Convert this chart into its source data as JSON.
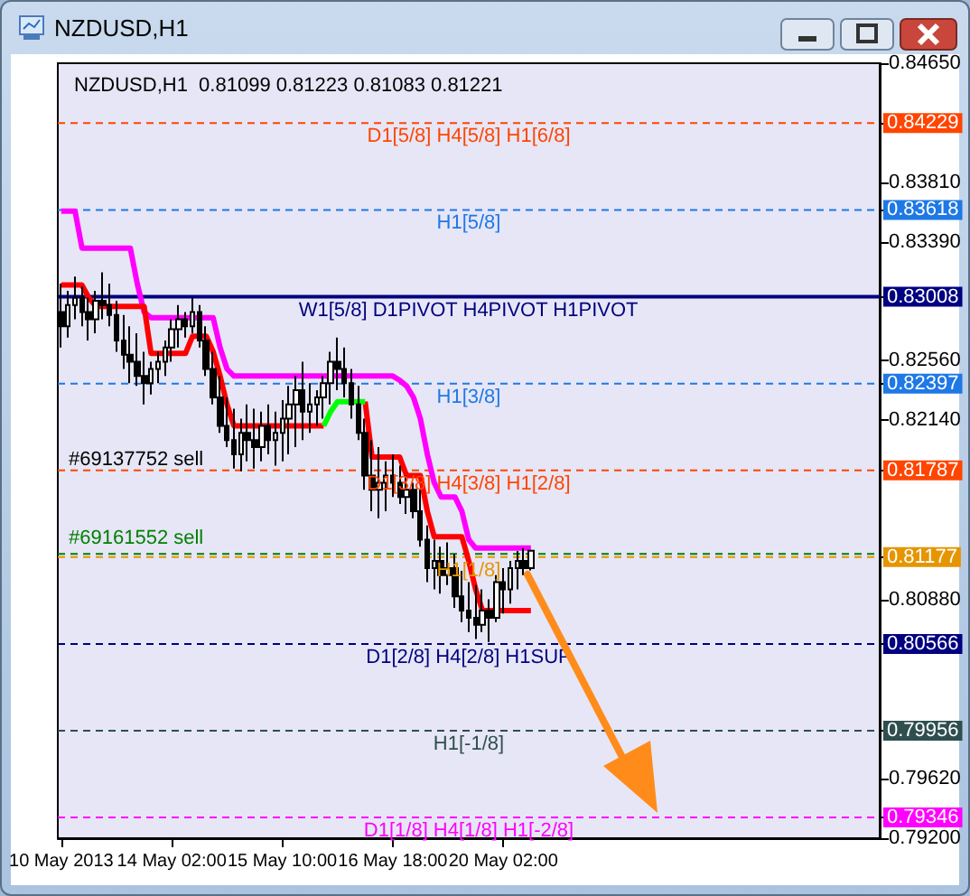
{
  "chart_data": {
    "type": "candlestick",
    "title": "NZDUSD,H1",
    "subtitle": "NZDUSD,H1  0.81099 0.81223 0.81083 0.81221",
    "categories": [
      "10 May 2013",
      null,
      null,
      null,
      null,
      null,
      null,
      null,
      null,
      null,
      null,
      null,
      null,
      null,
      null,
      null,
      "14 May 02:00",
      null,
      null,
      null,
      null,
      null,
      null,
      null,
      null,
      null,
      null,
      null,
      null,
      null,
      null,
      null,
      "15 May 10:00",
      null,
      null,
      null,
      null,
      null,
      null,
      null,
      null,
      null,
      null,
      null,
      null,
      null,
      null,
      null,
      "16 May 18:00",
      null,
      null,
      null,
      null,
      null,
      null,
      null,
      null,
      null,
      null,
      null,
      null,
      null,
      null,
      null,
      "20 May 02:00",
      null,
      null,
      null,
      null,
      null,
      null,
      null,
      null,
      null,
      null,
      null,
      null,
      null,
      null,
      null,
      null,
      null,
      null,
      null,
      null,
      null,
      null,
      null,
      null,
      null,
      null,
      null,
      null,
      null,
      null,
      null,
      null,
      null,
      null,
      null,
      null,
      null,
      null,
      null,
      null,
      null,
      null,
      null,
      null,
      null,
      null,
      null,
      null,
      null,
      null,
      null,
      null,
      null,
      null
    ],
    "series": [
      {
        "type": "candlestick",
        "color": "#000000",
        "ohlc": [
          [
            0.829,
            0.831,
            0.8265,
            0.828
          ],
          [
            0.828,
            0.8305,
            0.8272,
            0.8295
          ],
          [
            0.8295,
            0.8315,
            0.8285,
            0.83
          ],
          [
            0.83,
            0.8308,
            0.828,
            0.829
          ],
          [
            0.829,
            0.83,
            0.827,
            0.8285
          ],
          [
            0.8285,
            0.8305,
            0.8275,
            0.8298
          ],
          [
            0.8298,
            0.8318,
            0.8285,
            0.8295
          ],
          [
            0.8295,
            0.831,
            0.828,
            0.8288
          ],
          [
            0.8288,
            0.8298,
            0.8262,
            0.827
          ],
          [
            0.827,
            0.8288,
            0.825,
            0.826
          ],
          [
            0.826,
            0.828,
            0.824,
            0.8255
          ],
          [
            0.8255,
            0.8275,
            0.8238,
            0.8245
          ],
          [
            0.8245,
            0.8262,
            0.8225,
            0.824
          ],
          [
            0.824,
            0.8255,
            0.8232,
            0.825
          ],
          [
            0.825,
            0.8262,
            0.824,
            0.8255
          ],
          [
            0.8255,
            0.827,
            0.8245,
            0.8265
          ],
          [
            0.8265,
            0.8285,
            0.8255,
            0.8278
          ],
          [
            0.8278,
            0.8295,
            0.8265,
            0.8285
          ],
          [
            0.8285,
            0.829,
            0.8272,
            0.828
          ],
          [
            0.828,
            0.83,
            0.8275,
            0.829
          ],
          [
            0.829,
            0.8295,
            0.8265,
            0.827
          ],
          [
            0.827,
            0.828,
            0.8245,
            0.825
          ],
          [
            0.825,
            0.8262,
            0.8225,
            0.823
          ],
          [
            0.823,
            0.8245,
            0.8205,
            0.821
          ],
          [
            0.821,
            0.823,
            0.8195,
            0.82
          ],
          [
            0.82,
            0.8222,
            0.818,
            0.819
          ],
          [
            0.819,
            0.8215,
            0.8178,
            0.8205
          ],
          [
            0.8205,
            0.8225,
            0.8185,
            0.82
          ],
          [
            0.82,
            0.8222,
            0.818,
            0.8195
          ],
          [
            0.8195,
            0.822,
            0.8185,
            0.821
          ],
          [
            0.821,
            0.8225,
            0.819,
            0.82
          ],
          [
            0.82,
            0.822,
            0.8182,
            0.8205
          ],
          [
            0.8205,
            0.8228,
            0.8185,
            0.8215
          ],
          [
            0.8215,
            0.8238,
            0.819,
            0.8225
          ],
          [
            0.8225,
            0.8245,
            0.8195,
            0.8235
          ],
          [
            0.8235,
            0.8255,
            0.82,
            0.822
          ],
          [
            0.822,
            0.824,
            0.8205,
            0.8225
          ],
          [
            0.8225,
            0.8235,
            0.821,
            0.823
          ],
          [
            0.823,
            0.8245,
            0.8215,
            0.824
          ],
          [
            0.824,
            0.8262,
            0.8225,
            0.8255
          ],
          [
            0.8255,
            0.8272,
            0.8235,
            0.825
          ],
          [
            0.825,
            0.8265,
            0.823,
            0.824
          ],
          [
            0.824,
            0.825,
            0.8215,
            0.8225
          ],
          [
            0.8225,
            0.8238,
            0.82,
            0.8205
          ],
          [
            0.8205,
            0.8215,
            0.8165,
            0.8175
          ],
          [
            0.8175,
            0.82,
            0.815,
            0.8165
          ],
          [
            0.8165,
            0.8195,
            0.8145,
            0.817
          ],
          [
            0.817,
            0.8185,
            0.815,
            0.8175
          ],
          [
            0.8175,
            0.819,
            0.816,
            0.817
          ],
          [
            0.817,
            0.8182,
            0.8155,
            0.816
          ],
          [
            0.816,
            0.8175,
            0.8148,
            0.8165
          ],
          [
            0.8165,
            0.817,
            0.8145,
            0.815
          ],
          [
            0.815,
            0.8165,
            0.8125,
            0.813
          ],
          [
            0.813,
            0.814,
            0.81,
            0.811
          ],
          [
            0.811,
            0.813,
            0.8095,
            0.8115
          ],
          [
            0.8115,
            0.8125,
            0.8092,
            0.8105
          ],
          [
            0.8105,
            0.8128,
            0.8098,
            0.811
          ],
          [
            0.811,
            0.812,
            0.8082,
            0.809
          ],
          [
            0.809,
            0.8108,
            0.8072,
            0.808
          ],
          [
            0.808,
            0.81,
            0.8065,
            0.8075
          ],
          [
            0.8075,
            0.8098,
            0.806,
            0.807
          ],
          [
            0.807,
            0.8095,
            0.8065,
            0.808
          ],
          [
            0.808,
            0.8088,
            0.8058,
            0.8075
          ],
          [
            0.8075,
            0.8105,
            0.8072,
            0.81
          ],
          [
            0.81,
            0.811,
            0.8078,
            0.8095
          ],
          [
            0.8095,
            0.8115,
            0.8085,
            0.811
          ],
          [
            0.811,
            0.8122,
            0.8095,
            0.8115
          ],
          [
            0.8115,
            0.8124,
            0.8105,
            0.811
          ],
          [
            0.81099,
            0.81223,
            0.81083,
            0.81221
          ],
          null,
          null,
          null,
          null,
          null,
          null,
          null,
          null,
          null,
          null,
          null,
          null,
          null,
          null,
          null,
          null,
          null,
          null,
          null,
          null,
          null,
          null,
          null,
          null,
          null,
          null,
          null,
          null,
          null,
          null,
          null,
          null,
          null,
          null,
          null,
          null,
          null,
          null,
          null,
          null,
          null,
          null,
          null,
          null,
          null,
          null,
          null,
          null,
          null,
          null
        ]
      },
      {
        "type": "line",
        "color": "#ff00ff",
        "values": [
          0.8361,
          0.8361,
          0.8361,
          0.8335,
          0.8335,
          0.8335,
          0.8335,
          0.8335,
          0.8335,
          0.8335,
          0.8335,
          0.831,
          0.829,
          0.8286,
          0.8286,
          0.8286,
          0.8286,
          0.8286,
          0.8286,
          0.8286,
          0.8286,
          0.8286,
          0.8286,
          0.8265,
          0.825,
          0.8245,
          0.8245,
          0.8245,
          0.8245,
          0.8245,
          0.8245,
          0.8245,
          0.8245,
          0.8245,
          0.8245,
          0.8245,
          0.8245,
          0.8245,
          0.8245,
          0.8245,
          0.8245,
          0.8245,
          0.8245,
          0.8245,
          0.8245,
          0.8245,
          0.8245,
          0.8245,
          0.8245,
          0.8242,
          0.8238,
          0.823,
          0.8215,
          0.819,
          0.817,
          0.816,
          0.816,
          0.816,
          0.815,
          0.813,
          0.8124,
          0.8124,
          0.8124,
          0.8124,
          0.8124,
          0.8124,
          0.8124,
          0.8124,
          0.8124,
          null,
          null,
          null,
          null,
          null,
          null,
          null,
          null,
          null,
          null,
          null,
          null,
          null,
          null,
          null,
          null,
          null,
          null,
          null,
          null,
          null,
          null,
          null,
          null,
          null,
          null,
          null,
          null,
          null,
          null,
          null,
          null,
          null,
          null,
          null,
          null,
          null,
          null,
          null,
          null,
          null,
          null,
          null,
          null,
          null,
          null,
          null,
          null,
          null,
          null
        ]
      },
      {
        "type": "line",
        "color": "#ff0000",
        "values": [
          0.8309,
          0.8309,
          0.8309,
          0.8309,
          0.83,
          0.8294,
          0.8294,
          0.8294,
          0.8294,
          0.8294,
          0.8294,
          0.8294,
          0.8294,
          0.8261,
          0.8261,
          0.8261,
          0.8261,
          0.8261,
          0.8261,
          0.8273,
          0.8273,
          0.8273,
          0.8262,
          0.8245,
          0.8225,
          0.821,
          0.821,
          0.821,
          0.821,
          0.821,
          0.821,
          0.821,
          0.821,
          0.821,
          0.821,
          0.821,
          0.821,
          0.821,
          0.821,
          null,
          null,
          null,
          null,
          null,
          0.8227,
          0.8188,
          0.8188,
          0.8188,
          0.8188,
          0.8188,
          0.8175,
          0.8175,
          0.8175,
          0.815,
          0.8132,
          0.8132,
          0.8132,
          0.8132,
          0.8132,
          0.8115,
          0.8095,
          0.808,
          0.808,
          0.808,
          0.808,
          0.808,
          0.808,
          0.808,
          0.808,
          null,
          null,
          null,
          null,
          null,
          null,
          null,
          null,
          null,
          null,
          null,
          null,
          null,
          null,
          null,
          null,
          null,
          null,
          null,
          null,
          null,
          null,
          null,
          null,
          null,
          null,
          null,
          null,
          null,
          null,
          null,
          null,
          null,
          null,
          null,
          null,
          null,
          null,
          null,
          null,
          null,
          null,
          null,
          null,
          null,
          null,
          null,
          null,
          null,
          null
        ]
      },
      {
        "type": "line",
        "color": "#00ff00",
        "values": [
          null,
          null,
          null,
          null,
          null,
          null,
          null,
          null,
          null,
          null,
          null,
          null,
          null,
          null,
          null,
          null,
          null,
          null,
          null,
          null,
          null,
          null,
          null,
          null,
          null,
          null,
          null,
          null,
          null,
          null,
          null,
          null,
          null,
          null,
          null,
          null,
          null,
          null,
          0.821,
          0.822,
          0.8227,
          0.8227,
          0.8227,
          0.8227,
          0.8227,
          null,
          null,
          null,
          null,
          null,
          null,
          null,
          null,
          null,
          null,
          null,
          null,
          null,
          null,
          null,
          null,
          null,
          null,
          null,
          null,
          null,
          null,
          null,
          null,
          null,
          null,
          null,
          null,
          null,
          null,
          null,
          null,
          null,
          null,
          null,
          null,
          null,
          null,
          null,
          null,
          null,
          null,
          null,
          null,
          null,
          null,
          null,
          null,
          null,
          null,
          null,
          null,
          null,
          null,
          null,
          null,
          null,
          null,
          null,
          null,
          null,
          null,
          null,
          null,
          null,
          null,
          null,
          null,
          null,
          null,
          null,
          null,
          null,
          null
        ]
      }
    ],
    "ylim": [
      0.792,
      0.8465
    ],
    "yticks": [
      {
        "value": 0.792,
        "label": "0.79200"
      },
      {
        "value": 0.79346,
        "label": "0.79346"
      },
      {
        "value": 0.7962,
        "label": "0.79620"
      },
      {
        "value": 0.79956,
        "label": "0.79956"
      },
      {
        "value": 0.80566,
        "label": "0.80566"
      },
      {
        "value": 0.8088,
        "label": "0.80880"
      },
      {
        "value": 0.81177,
        "label": "0.81177"
      },
      {
        "value": 0.81787,
        "label": "0.81787"
      },
      {
        "value": 0.8214,
        "label": "0.82140"
      },
      {
        "value": 0.82397,
        "label": "0.82397"
      },
      {
        "value": 0.8256,
        "label": "0.82560"
      },
      {
        "value": 0.83008,
        "label": "0.83008"
      },
      {
        "value": 0.8339,
        "label": "0.83390"
      },
      {
        "value": 0.83618,
        "label": "0.83618"
      },
      {
        "value": 0.8381,
        "label": "0.83810"
      },
      {
        "value": 0.84229,
        "label": "0.84229"
      },
      {
        "value": 0.8465,
        "label": "0.84650"
      }
    ],
    "ref_lines": [
      {
        "axis": "y",
        "value": 0.84229,
        "label": "D1[5/8] H4[5/8] H1[6/8]",
        "color": "#ff4500",
        "line_style": "dashed"
      },
      {
        "axis": "y",
        "value": 0.83618,
        "label": "H1[5/8]",
        "color": "#1e78e6",
        "line_style": "dashed"
      },
      {
        "axis": "y",
        "value": 0.83008,
        "label": "W1[5/8] D1PIVOT H4PIVOT H1PIVOT",
        "color": "#000080",
        "line_style": "solid"
      },
      {
        "axis": "y",
        "value": 0.82397,
        "label": "H1[3/8]",
        "color": "#1e78e6",
        "line_style": "dashed"
      },
      {
        "axis": "y",
        "value": 0.81787,
        "label": "D1[3/8] H4[3/8] H1[2/8]",
        "color": "#ff4500",
        "line_style": "dashed"
      },
      {
        "axis": "y",
        "value": 0.81177,
        "label": "H1[1/8]",
        "color": "#e69500",
        "line_style": "dashed"
      },
      {
        "axis": "y",
        "value": 0.80566,
        "label": "D1[2/8] H4[2/8] H1SUP",
        "color": "#000080",
        "line_style": "dashed"
      },
      {
        "axis": "y",
        "value": 0.79956,
        "label": "H1[-1/8]",
        "color": "#2f4f4f",
        "line_style": "dashed"
      },
      {
        "axis": "y",
        "value": 0.79346,
        "label": "D1[1/8] H4[1/8] H1[-2/8]",
        "color": "#ff00ff",
        "line_style": "dashed"
      },
      {
        "axis": "y",
        "value": 0.812,
        "label": "#69161552 sell",
        "color": "#008000",
        "line_style": "dashed"
      }
    ],
    "annotations": [
      "#69137752 sell"
    ],
    "grid": false
  }
}
